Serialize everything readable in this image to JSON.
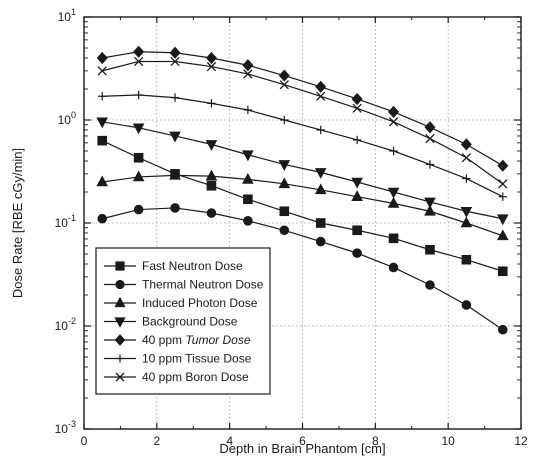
{
  "chart_data": {
    "type": "line",
    "title": "",
    "xlabel": "Depth in Brain Phantom [cm]",
    "ylabel": "Dose Rate [RBE cGy/min]",
    "xlim": [
      0,
      12
    ],
    "ylim": [
      0.001,
      10
    ],
    "y_scale": "log",
    "grid": true,
    "legend_position": "bottom-left",
    "x_ticks": [
      {
        "value": 0,
        "label": "0"
      },
      {
        "value": 2,
        "label": "2"
      },
      {
        "value": 4,
        "label": "4"
      },
      {
        "value": 6,
        "label": "6"
      },
      {
        "value": 8,
        "label": "8"
      },
      {
        "value": 10,
        "label": "10"
      },
      {
        "value": 12,
        "label": "12"
      }
    ],
    "y_ticks": [
      {
        "value": 0.001,
        "base": "10",
        "exp": "-3"
      },
      {
        "value": 0.01,
        "base": "10",
        "exp": "-2"
      },
      {
        "value": 0.1,
        "base": "10",
        "exp": "-1"
      },
      {
        "value": 1,
        "base": "10",
        "exp": "0"
      },
      {
        "value": 10,
        "base": "10",
        "exp": "1"
      }
    ],
    "x": [
      0.5,
      1.5,
      2.5,
      3.5,
      4.5,
      5.5,
      6.5,
      7.5,
      8.5,
      9.5,
      10.5,
      11.5
    ],
    "series": [
      {
        "name": "Fast Neutron Dose",
        "italic": "",
        "marker": "square",
        "values": [
          0.63,
          0.43,
          0.3,
          0.23,
          0.17,
          0.13,
          0.1,
          0.085,
          0.071,
          0.055,
          0.044,
          0.034
        ]
      },
      {
        "name": "Thermal Neutron Dose",
        "italic": "",
        "marker": "circle",
        "values": [
          0.11,
          0.135,
          0.14,
          0.125,
          0.105,
          0.085,
          0.066,
          0.051,
          0.037,
          0.025,
          0.016,
          0.0092
        ]
      },
      {
        "name": "Induced Photon Dose",
        "italic": "",
        "marker": "triangle-up",
        "values": [
          0.25,
          0.28,
          0.29,
          0.285,
          0.265,
          0.24,
          0.21,
          0.18,
          0.155,
          0.13,
          0.1,
          0.075
        ]
      },
      {
        "name": "Background Dose",
        "italic": "",
        "marker": "triangle-down",
        "values": [
          0.96,
          0.84,
          0.7,
          0.58,
          0.46,
          0.37,
          0.31,
          0.25,
          0.2,
          0.16,
          0.13,
          0.11
        ]
      },
      {
        "name": "40 ppm ",
        "italic": "Tumor Dose",
        "marker": "diamond",
        "values": [
          4.0,
          4.6,
          4.5,
          4.0,
          3.4,
          2.7,
          2.1,
          1.6,
          1.2,
          0.85,
          0.58,
          0.36
        ]
      },
      {
        "name": "10 ppm Tissue Dose",
        "italic": "",
        "marker": "plus",
        "values": [
          1.7,
          1.75,
          1.65,
          1.45,
          1.25,
          1.0,
          0.8,
          0.64,
          0.5,
          0.37,
          0.27,
          0.18
        ]
      },
      {
        "name": "40 ppm Boron Dose",
        "italic": "",
        "marker": "cross",
        "values": [
          3.0,
          3.7,
          3.7,
          3.3,
          2.8,
          2.2,
          1.7,
          1.3,
          0.96,
          0.66,
          0.43,
          0.24
        ]
      }
    ]
  }
}
